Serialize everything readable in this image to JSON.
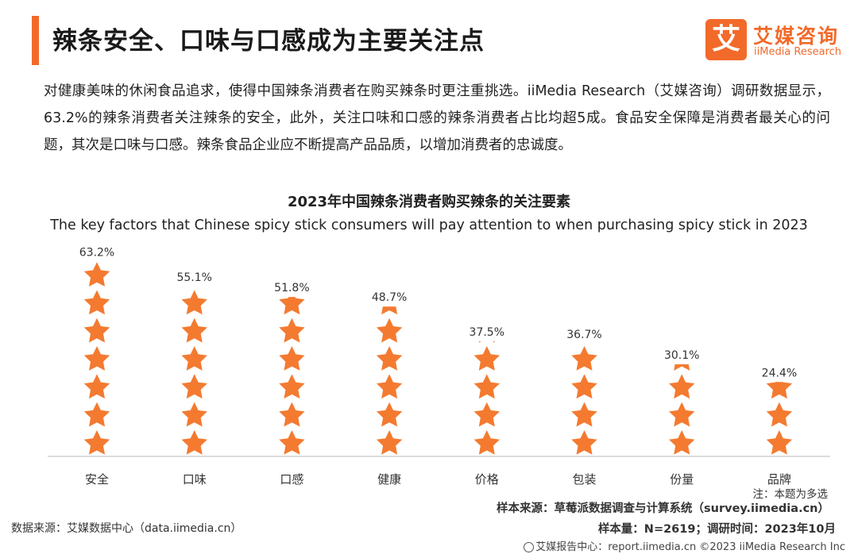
{
  "page": {
    "title": "辣条安全、口味与口感成为主要关注点",
    "intro": "对健康美味的休闲食品追求，使得中国辣条消费者在购买辣条时更注重挑选。iiMedia Research（艾媒咨询）调研数据显示，63.2%的辣条消费者关注辣条的安全，此外，关注口味和口感的辣条消费者占比均超5成。食品安全保障是消费者最关心的问题，其次是口味与口感。辣条食品企业应不断提高产品品质，以增加消费者的忠诚度。"
  },
  "logo": {
    "mark": "艾",
    "name_cn": "艾媒咨询",
    "name_en": "iiMedia Research"
  },
  "chart_data": {
    "type": "bar",
    "style": "pictograph-stars",
    "title": "2023年中国辣条消费者购买辣条的关注要素",
    "subtitle": "The key factors that Chinese spicy stick consumers will pay attention to when purchasing spicy stick in 2023",
    "categories": [
      "安全",
      "口味",
      "口感",
      "健康",
      "价格",
      "包装",
      "份量",
      "品牌"
    ],
    "values": [
      63.2,
      55.1,
      51.8,
      48.7,
      37.5,
      36.7,
      30.1,
      24.4
    ],
    "labels": [
      "63.2%",
      "55.1%",
      "51.8%",
      "48.7%",
      "37.5%",
      "36.7%",
      "30.1%",
      "24.4%"
    ],
    "unit": "%",
    "ylim": [
      0,
      63.2
    ],
    "star_count": 7,
    "color": "#f47a30"
  },
  "notes": {
    "note": "注：本题为多选",
    "sample_source": "样本来源：草莓派数据调查与计算系统（survey.iimedia.cn）",
    "data_source": "数据来源：艾媒数据中心（data.iimedia.cn）",
    "sample_size": "样本量：N=2619；调研时间：2023年10月",
    "footer": "艾媒报告中心：report.iimedia.cn  ©2023  iiMedia Research  Inc"
  }
}
